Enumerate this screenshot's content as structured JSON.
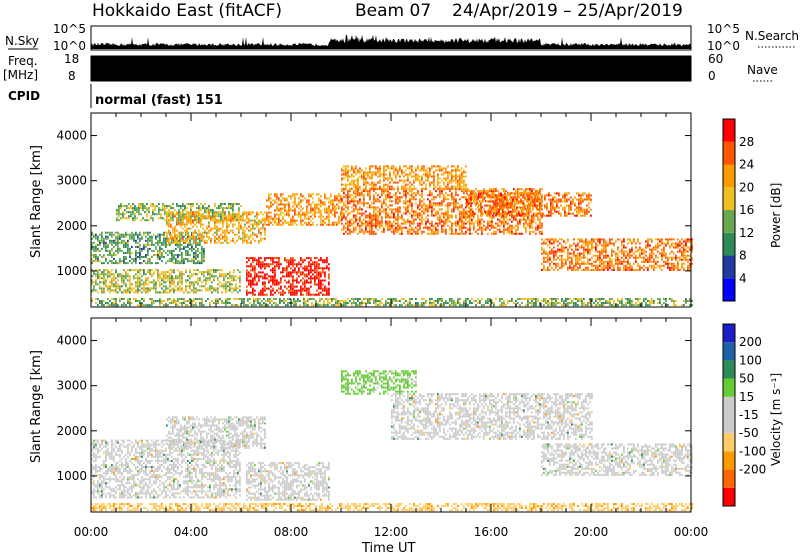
{
  "header": {
    "station": "Hokkaido East (fitACF)",
    "beam": "Beam 07",
    "dates": "24/Apr/2019 – 25/Apr/2019"
  },
  "strips": {
    "nsky_label": "N.Sky",
    "nsearch_label": "N.Search",
    "nsky_ticks": [
      "10^5",
      "10^0"
    ],
    "nsearch_ticks": [
      "10^5",
      "10^0"
    ],
    "freq_label_1": "Freq.",
    "freq_label_2": "[MHz]",
    "freq_ticks": [
      "18",
      "8"
    ],
    "nave_label": "Nave",
    "nave_ticks": [
      "60",
      "0"
    ],
    "cpid_label": "CPID",
    "cpid_text": "normal (fast) 151"
  },
  "colors": {
    "power": [
      "#0000ff",
      "#1e3ca0",
      "#2e8b57",
      "#6aa84f",
      "#f0c020",
      "#ff9900",
      "#ff5500",
      "#ff0000"
    ],
    "velocity": [
      "#1e1ec8",
      "#2060a8",
      "#2e8b57",
      "#66cc33",
      "#cccccc",
      "#cccccc",
      "#ffcc66",
      "#ff9900",
      "#ff6600",
      "#ff0000"
    ]
  },
  "chart_data": [
    {
      "type": "heatmap",
      "name": "power",
      "xlabel": "Time UT",
      "ylabel": "Slant Range [km]",
      "xticks": [
        "00:00",
        "04:00",
        "08:00",
        "12:00",
        "16:00",
        "20:00",
        "00:00"
      ],
      "xlim": [
        0,
        24
      ],
      "ylim": [
        200,
        4500
      ],
      "yticks": [
        1000,
        2000,
        3000,
        4000
      ],
      "colorbar_label": "Power [dB]",
      "colorbar_ticks": [
        4,
        8,
        12,
        16,
        20,
        24,
        28
      ],
      "colorbar_range": [
        0,
        32
      ],
      "regions": [
        {
          "t0": 0,
          "t1": 4.5,
          "r0": 1150,
          "r1": 1850,
          "level": 12
        },
        {
          "t0": 0,
          "t1": 6,
          "r0": 500,
          "r1": 1000,
          "level": 16
        },
        {
          "t0": 1,
          "t1": 6,
          "r0": 2100,
          "r1": 2500,
          "level": 14
        },
        {
          "t0": 3,
          "t1": 7,
          "r0": 1600,
          "r1": 2300,
          "level": 20
        },
        {
          "t0": 6.2,
          "t1": 9.5,
          "r0": 450,
          "r1": 1300,
          "level": 30
        },
        {
          "t0": 7,
          "t1": 10,
          "r0": 2000,
          "r1": 2700,
          "level": 22
        },
        {
          "t0": 10,
          "t1": 18,
          "r0": 1800,
          "r1": 2800,
          "level": 24
        },
        {
          "t0": 10,
          "t1": 15,
          "r0": 2800,
          "r1": 3300,
          "level": 22
        },
        {
          "t0": 15,
          "t1": 20,
          "r0": 2200,
          "r1": 2700,
          "level": 24
        },
        {
          "t0": 18,
          "t1": 24,
          "r0": 1000,
          "r1": 1700,
          "level": 24
        },
        {
          "t0": 0,
          "t1": 24,
          "r0": 220,
          "r1": 380,
          "level": 14
        }
      ]
    },
    {
      "type": "heatmap",
      "name": "velocity",
      "xlabel": "Time UT",
      "ylabel": "Slant Range [km]",
      "xticks": [
        "00:00",
        "04:00",
        "08:00",
        "12:00",
        "16:00",
        "20:00",
        "00:00"
      ],
      "xlim": [
        0,
        24
      ],
      "ylim": [
        200,
        4500
      ],
      "yticks": [
        1000,
        2000,
        3000,
        4000
      ],
      "colorbar_label": "Velocity [m s⁻¹]",
      "colorbar_ticks": [
        200,
        100,
        50,
        15,
        -15,
        -50,
        -100,
        -200
      ],
      "regions": [
        {
          "t0": 0,
          "t1": 6,
          "r0": 500,
          "r1": 1800,
          "level": 0
        },
        {
          "t0": 3,
          "t1": 7,
          "r0": 1600,
          "r1": 2300,
          "level": 0
        },
        {
          "t0": 6.2,
          "t1": 9.5,
          "r0": 450,
          "r1": 1300,
          "level": 0
        },
        {
          "t0": 10,
          "t1": 13,
          "r0": 2800,
          "r1": 3300,
          "level": 25
        },
        {
          "t0": 12,
          "t1": 20,
          "r0": 1800,
          "r1": 2800,
          "level": 0
        },
        {
          "t0": 18,
          "t1": 24,
          "r0": 1000,
          "r1": 1700,
          "level": 0
        },
        {
          "t0": 0,
          "t1": 24,
          "r0": 220,
          "r1": 380,
          "level": -40
        }
      ]
    }
  ]
}
